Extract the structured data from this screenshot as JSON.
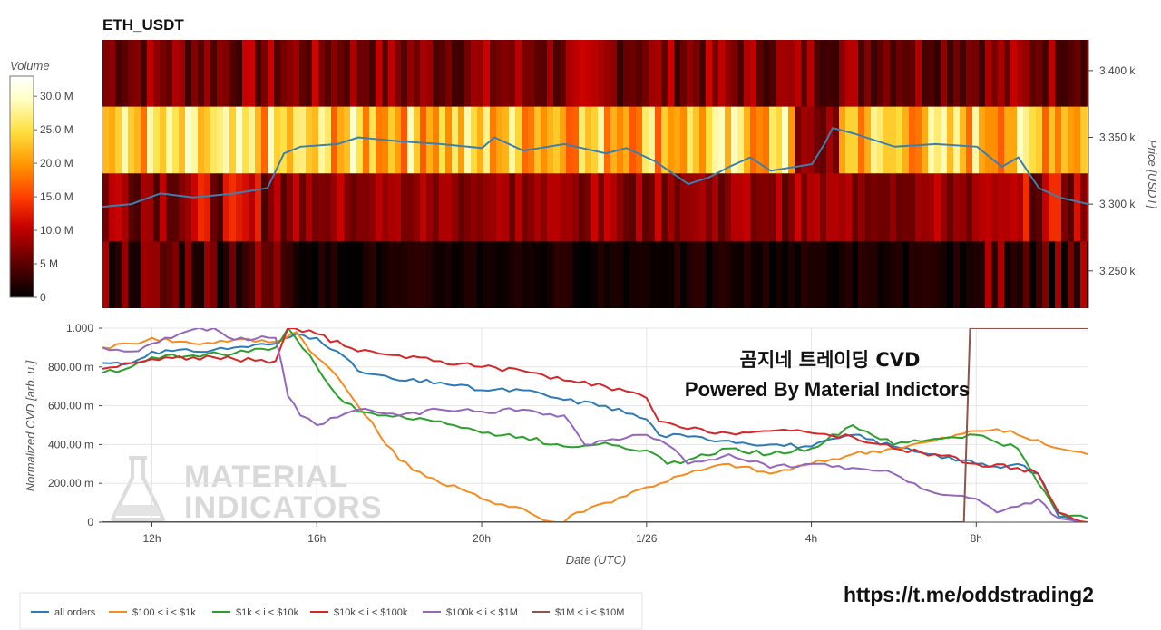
{
  "top_title": "ETH_USDT",
  "colorbar": {
    "title": "Volume",
    "tick_labels": [
      "30.0 M",
      "25.0 M",
      "20.0 M",
      "15.0 M",
      "10.0 M",
      "5 M",
      "0"
    ],
    "tick_values": [
      30,
      25,
      20,
      15,
      10,
      5,
      0
    ],
    "max": 33,
    "colors": [
      "#000000",
      "#5a0000",
      "#c80000",
      "#ff3c00",
      "#ff9600",
      "#ffe040",
      "#ffffc8",
      "#ffffff"
    ]
  },
  "overlay": {
    "line1": "곰지네 트레이딩 CVD",
    "line2": "Powered By Material Indictors",
    "url": "https://t.me/oddstrading2"
  },
  "watermark": [
    "MATERIAL",
    "INDICATORS"
  ],
  "chart_data": [
    {
      "type": "heatmap",
      "title": "ETH_USDT",
      "x_range_hours": [
        10.8,
        34.7
      ],
      "ylabel": "Price [USDT]",
      "ylim": [
        3222,
        3423
      ],
      "y_ticks": [
        3250,
        3300,
        3350,
        3400
      ],
      "y_tick_labels": [
        "3.250 k",
        "3.300 k",
        "3.350 k",
        "3.400 k"
      ],
      "bands": [
        {
          "low": 3373,
          "high": 3423,
          "base": 7,
          "amp": 4
        },
        {
          "low": 3323,
          "high": 3373,
          "base": 23,
          "amp": 7
        },
        {
          "low": 3272,
          "high": 3323,
          "base": 9,
          "amp": 5
        },
        {
          "low": 3222,
          "high": 3272,
          "base": 5,
          "amp": 5
        }
      ],
      "price_line": {
        "name": "price",
        "color": "#3a7fb0",
        "x": [
          10.8,
          11.5,
          12.2,
          13.0,
          14.0,
          14.8,
          15.2,
          15.6,
          16.5,
          17.0,
          18.0,
          19.0,
          20.0,
          20.3,
          21.0,
          22.0,
          23.0,
          23.5,
          24.2,
          25.0,
          25.5,
          26.0,
          26.5,
          27.0,
          28.0,
          28.3,
          28.5,
          29.0,
          30.0,
          31.0,
          32.0,
          32.6,
          33.0,
          33.5,
          34.0,
          34.7
        ],
        "y": [
          3298,
          3300,
          3308,
          3305,
          3308,
          3312,
          3338,
          3343,
          3345,
          3350,
          3347,
          3345,
          3342,
          3350,
          3340,
          3345,
          3338,
          3342,
          3332,
          3315,
          3320,
          3328,
          3335,
          3325,
          3330,
          3345,
          3357,
          3353,
          3343,
          3345,
          3343,
          3328,
          3335,
          3312,
          3305,
          3300
        ]
      }
    },
    {
      "type": "line",
      "xlabel": "Date (UTC)",
      "ylabel": "Normalized CVD [arb. u.]",
      "ylim": [
        0,
        1
      ],
      "y_ticks": [
        0,
        0.2,
        0.4,
        0.6,
        0.8,
        1.0
      ],
      "y_tick_labels": [
        "0",
        "200.00 m",
        "400.00 m",
        "600.00 m",
        "800.00 m",
        "1.000"
      ],
      "xlim": [
        10.8,
        34.7
      ],
      "x_ticks": [
        12,
        16,
        20,
        24,
        28,
        32
      ],
      "x_tick_labels": [
        "12h",
        "16h",
        "20h",
        "1/26",
        "4h",
        "8h"
      ],
      "series": [
        {
          "name": "all orders",
          "color": "#2e7ab6",
          "x": [
            10.8,
            11.5,
            12.0,
            13.0,
            14.0,
            15.0,
            15.5,
            16.0,
            16.5,
            17.0,
            18.0,
            19.0,
            20.0,
            21.0,
            22.0,
            23.0,
            24.0,
            24.3,
            25.0,
            26.0,
            27.0,
            28.0,
            29.0,
            30.0,
            31.0,
            32.0,
            32.6,
            33.0,
            33.5,
            34.0,
            34.7
          ],
          "y": [
            0.82,
            0.82,
            0.88,
            0.88,
            0.9,
            0.92,
            0.97,
            0.95,
            0.88,
            0.78,
            0.73,
            0.72,
            0.68,
            0.68,
            0.63,
            0.6,
            0.53,
            0.45,
            0.44,
            0.42,
            0.4,
            0.39,
            0.45,
            0.39,
            0.35,
            0.3,
            0.28,
            0.3,
            0.25,
            0.03,
            0.0
          ]
        },
        {
          "name": "$100 < i < $1k",
          "color": "#f68b1f",
          "x": [
            10.8,
            11.5,
            12.0,
            13.0,
            14.0,
            15.0,
            15.5,
            16.0,
            16.5,
            17.0,
            18.0,
            19.0,
            19.5,
            20.0,
            21.0,
            21.5,
            22.0,
            22.3,
            23.0,
            24.0,
            25.0,
            26.0,
            27.0,
            28.0,
            29.0,
            30.0,
            31.0,
            32.0,
            32.5,
            33.0,
            34.0,
            34.7
          ],
          "y": [
            0.9,
            0.92,
            0.95,
            0.92,
            0.94,
            0.93,
            0.98,
            0.85,
            0.75,
            0.6,
            0.32,
            0.2,
            0.17,
            0.12,
            0.07,
            0.01,
            0.0,
            0.05,
            0.1,
            0.18,
            0.25,
            0.3,
            0.25,
            0.3,
            0.35,
            0.38,
            0.42,
            0.47,
            0.48,
            0.45,
            0.38,
            0.35
          ]
        },
        {
          "name": "$1k < i < $10k",
          "color": "#2ca02c",
          "x": [
            10.8,
            11.5,
            12.0,
            13.0,
            14.0,
            15.0,
            15.3,
            16.0,
            16.5,
            17.0,
            18.0,
            19.0,
            20.0,
            21.0,
            22.0,
            23.0,
            24.0,
            24.5,
            25.0,
            26.0,
            27.0,
            28.0,
            29.0,
            30.0,
            31.0,
            32.0,
            33.0,
            33.5,
            34.0,
            34.7
          ],
          "y": [
            0.77,
            0.8,
            0.85,
            0.86,
            0.87,
            0.9,
            1.0,
            0.8,
            0.65,
            0.57,
            0.55,
            0.52,
            0.46,
            0.44,
            0.39,
            0.41,
            0.37,
            0.3,
            0.32,
            0.38,
            0.35,
            0.38,
            0.5,
            0.4,
            0.43,
            0.45,
            0.38,
            0.2,
            0.05,
            0.02
          ]
        },
        {
          "name": "$10k < i < $100k",
          "color": "#d62728",
          "x": [
            10.8,
            11.5,
            12.0,
            13.0,
            14.0,
            15.0,
            15.3,
            16.0,
            17.0,
            18.0,
            19.0,
            20.0,
            21.0,
            22.0,
            23.0,
            24.0,
            24.3,
            25.0,
            26.0,
            27.0,
            28.0,
            29.0,
            30.0,
            31.0,
            32.0,
            33.0,
            33.5,
            34.0,
            34.7
          ],
          "y": [
            0.79,
            0.82,
            0.84,
            0.85,
            0.84,
            0.83,
            1.0,
            0.97,
            0.88,
            0.86,
            0.83,
            0.8,
            0.78,
            0.73,
            0.7,
            0.64,
            0.52,
            0.48,
            0.46,
            0.47,
            0.46,
            0.44,
            0.38,
            0.35,
            0.3,
            0.28,
            0.25,
            0.05,
            0.0
          ]
        },
        {
          "name": "$100k < i < $1M",
          "color": "#9467bd",
          "x": [
            10.8,
            11.5,
            12.0,
            12.8,
            13.5,
            14.0,
            15.0,
            15.3,
            15.6,
            16.0,
            17.0,
            18.0,
            19.0,
            20.0,
            21.0,
            22.0,
            22.5,
            23.0,
            24.0,
            24.5,
            25.0,
            26.0,
            27.0,
            28.0,
            29.0,
            30.0,
            30.5,
            31.0,
            32.0,
            32.5,
            33.0,
            33.5,
            34.0,
            34.7
          ],
          "y": [
            0.9,
            0.88,
            0.92,
            0.98,
            1.0,
            0.94,
            0.95,
            0.65,
            0.55,
            0.5,
            0.58,
            0.55,
            0.58,
            0.57,
            0.58,
            0.55,
            0.4,
            0.42,
            0.45,
            0.4,
            0.3,
            0.35,
            0.28,
            0.3,
            0.28,
            0.25,
            0.2,
            0.15,
            0.12,
            0.05,
            0.08,
            0.12,
            0.02,
            0.0
          ]
        },
        {
          "name": "$1M < i < $10M",
          "color": "#8c564b",
          "x": [
            10.8,
            31.7,
            31.85,
            34.7
          ],
          "y": [
            0.0,
            0.0,
            1.0,
            1.0
          ]
        }
      ]
    }
  ],
  "legend": [
    {
      "label": "all orders",
      "color": "#2e7ab6"
    },
    {
      "label": "$100 < i < $1k",
      "color": "#f68b1f"
    },
    {
      "label": "$1k < i < $10k",
      "color": "#2ca02c"
    },
    {
      "label": "$10k < i < $100k",
      "color": "#d62728"
    },
    {
      "label": "$100k < i < $1M",
      "color": "#9467bd"
    },
    {
      "label": "$1M < i < $10M",
      "color": "#8c564b"
    }
  ]
}
